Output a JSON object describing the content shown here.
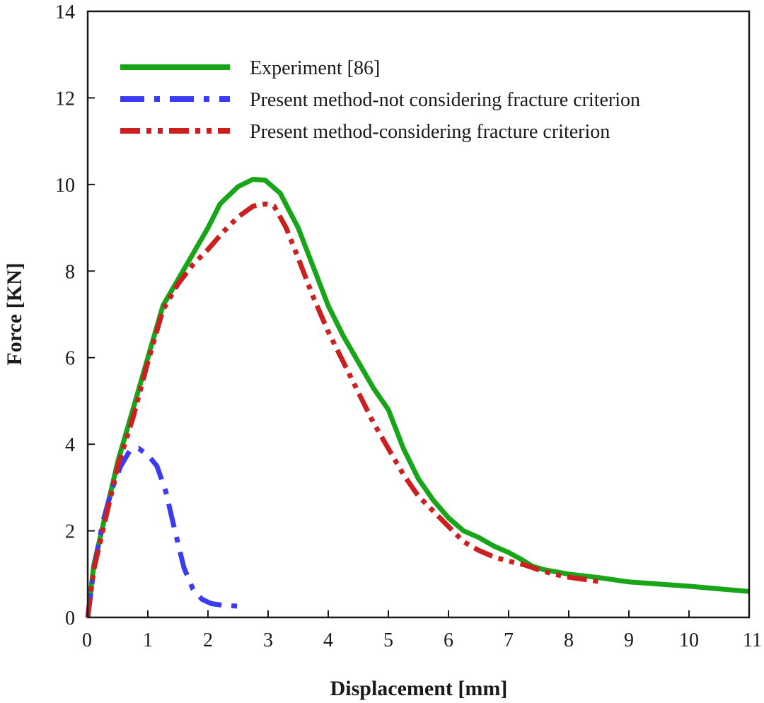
{
  "chart_data": {
    "type": "line",
    "xlabel": "Displacement [mm]",
    "ylabel": "Force [KN]",
    "xlim": [
      0,
      11
    ],
    "ylim": [
      0,
      14
    ],
    "xticks": [
      0,
      1,
      2,
      3,
      4,
      5,
      6,
      7,
      8,
      9,
      10,
      11
    ],
    "yticks": [
      0,
      2,
      4,
      6,
      8,
      10,
      12,
      14
    ],
    "grid": false,
    "legend_position": "top-left",
    "series": [
      {
        "name": "Experiment [86]",
        "color": "#19a519",
        "style": "solid",
        "x": [
          0,
          0.1,
          0.3,
          0.5,
          0.75,
          1.0,
          1.25,
          1.5,
          1.75,
          2.0,
          2.2,
          2.5,
          2.75,
          2.95,
          3.2,
          3.5,
          3.75,
          4.0,
          4.25,
          4.5,
          4.75,
          5.0,
          5.25,
          5.5,
          5.75,
          6.0,
          6.25,
          6.5,
          6.75,
          7.0,
          7.2,
          7.4,
          7.6,
          7.8,
          8.0,
          8.5,
          9.0,
          9.5,
          10.0,
          10.5,
          11.0
        ],
        "y": [
          0,
          1.2,
          2.4,
          3.6,
          4.8,
          6.0,
          7.2,
          7.8,
          8.4,
          9.0,
          9.55,
          9.95,
          10.12,
          10.1,
          9.8,
          9.0,
          8.1,
          7.2,
          6.5,
          5.9,
          5.3,
          4.8,
          3.9,
          3.2,
          2.7,
          2.3,
          2.0,
          1.85,
          1.65,
          1.5,
          1.35,
          1.18,
          1.1,
          1.05,
          1.0,
          0.92,
          0.82,
          0.77,
          0.72,
          0.66,
          0.6
        ]
      },
      {
        "name": "Present method-not considering fracture criterion",
        "color": "#3b3bf2",
        "style": "dashdot",
        "x": [
          0,
          0.1,
          0.25,
          0.4,
          0.55,
          0.7,
          0.85,
          1.0,
          1.15,
          1.3,
          1.45,
          1.6,
          1.75,
          1.9,
          2.05,
          2.25,
          2.5,
          2.6
        ],
        "y": [
          0,
          1.1,
          2.2,
          2.95,
          3.5,
          3.85,
          3.9,
          3.75,
          3.5,
          2.9,
          2.0,
          1.15,
          0.65,
          0.42,
          0.32,
          0.28,
          0.26,
          0.25
        ]
      },
      {
        "name": "Present method-considering fracture criterion",
        "color": "#cc1f1f",
        "style": "dashdotdot",
        "x": [
          0,
          0.1,
          0.3,
          0.5,
          0.75,
          1.0,
          1.25,
          1.5,
          1.75,
          2.0,
          2.25,
          2.5,
          2.75,
          2.95,
          3.1,
          3.3,
          3.5,
          3.75,
          4.0,
          4.25,
          4.5,
          4.75,
          5.0,
          5.25,
          5.5,
          5.75,
          6.0,
          6.25,
          6.5,
          6.75,
          7.0,
          7.25,
          7.5,
          7.75,
          8.0,
          8.25,
          8.5
        ],
        "y": [
          0,
          1.1,
          2.3,
          3.5,
          4.6,
          5.9,
          7.1,
          7.7,
          8.15,
          8.5,
          8.9,
          9.25,
          9.5,
          9.55,
          9.5,
          9.0,
          8.3,
          7.4,
          6.6,
          5.9,
          5.2,
          4.5,
          3.9,
          3.3,
          2.8,
          2.45,
          2.1,
          1.75,
          1.55,
          1.4,
          1.3,
          1.22,
          1.1,
          1.0,
          0.93,
          0.88,
          0.83
        ]
      }
    ]
  }
}
